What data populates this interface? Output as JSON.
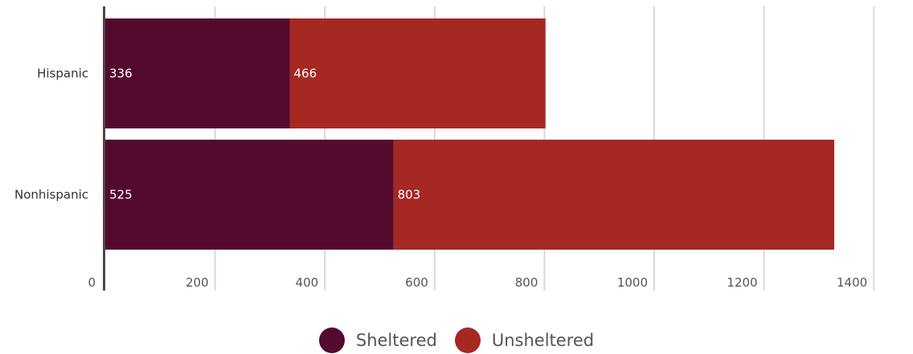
{
  "chart_data": {
    "type": "bar",
    "orientation": "horizontal",
    "stacked": true,
    "categories": [
      "Hispanic",
      "Nonhispanic"
    ],
    "series": [
      {
        "name": "Sheltered",
        "values": [
          336,
          525
        ],
        "color": "#540a2f"
      },
      {
        "name": "Unsheltered",
        "values": [
          466,
          803
        ],
        "color": "#a52823"
      }
    ],
    "xlim": [
      0,
      1400
    ],
    "xticks": [
      0,
      200,
      400,
      600,
      800,
      1000,
      1200,
      1400
    ],
    "grid": true,
    "legend_position": "bottom-center"
  }
}
